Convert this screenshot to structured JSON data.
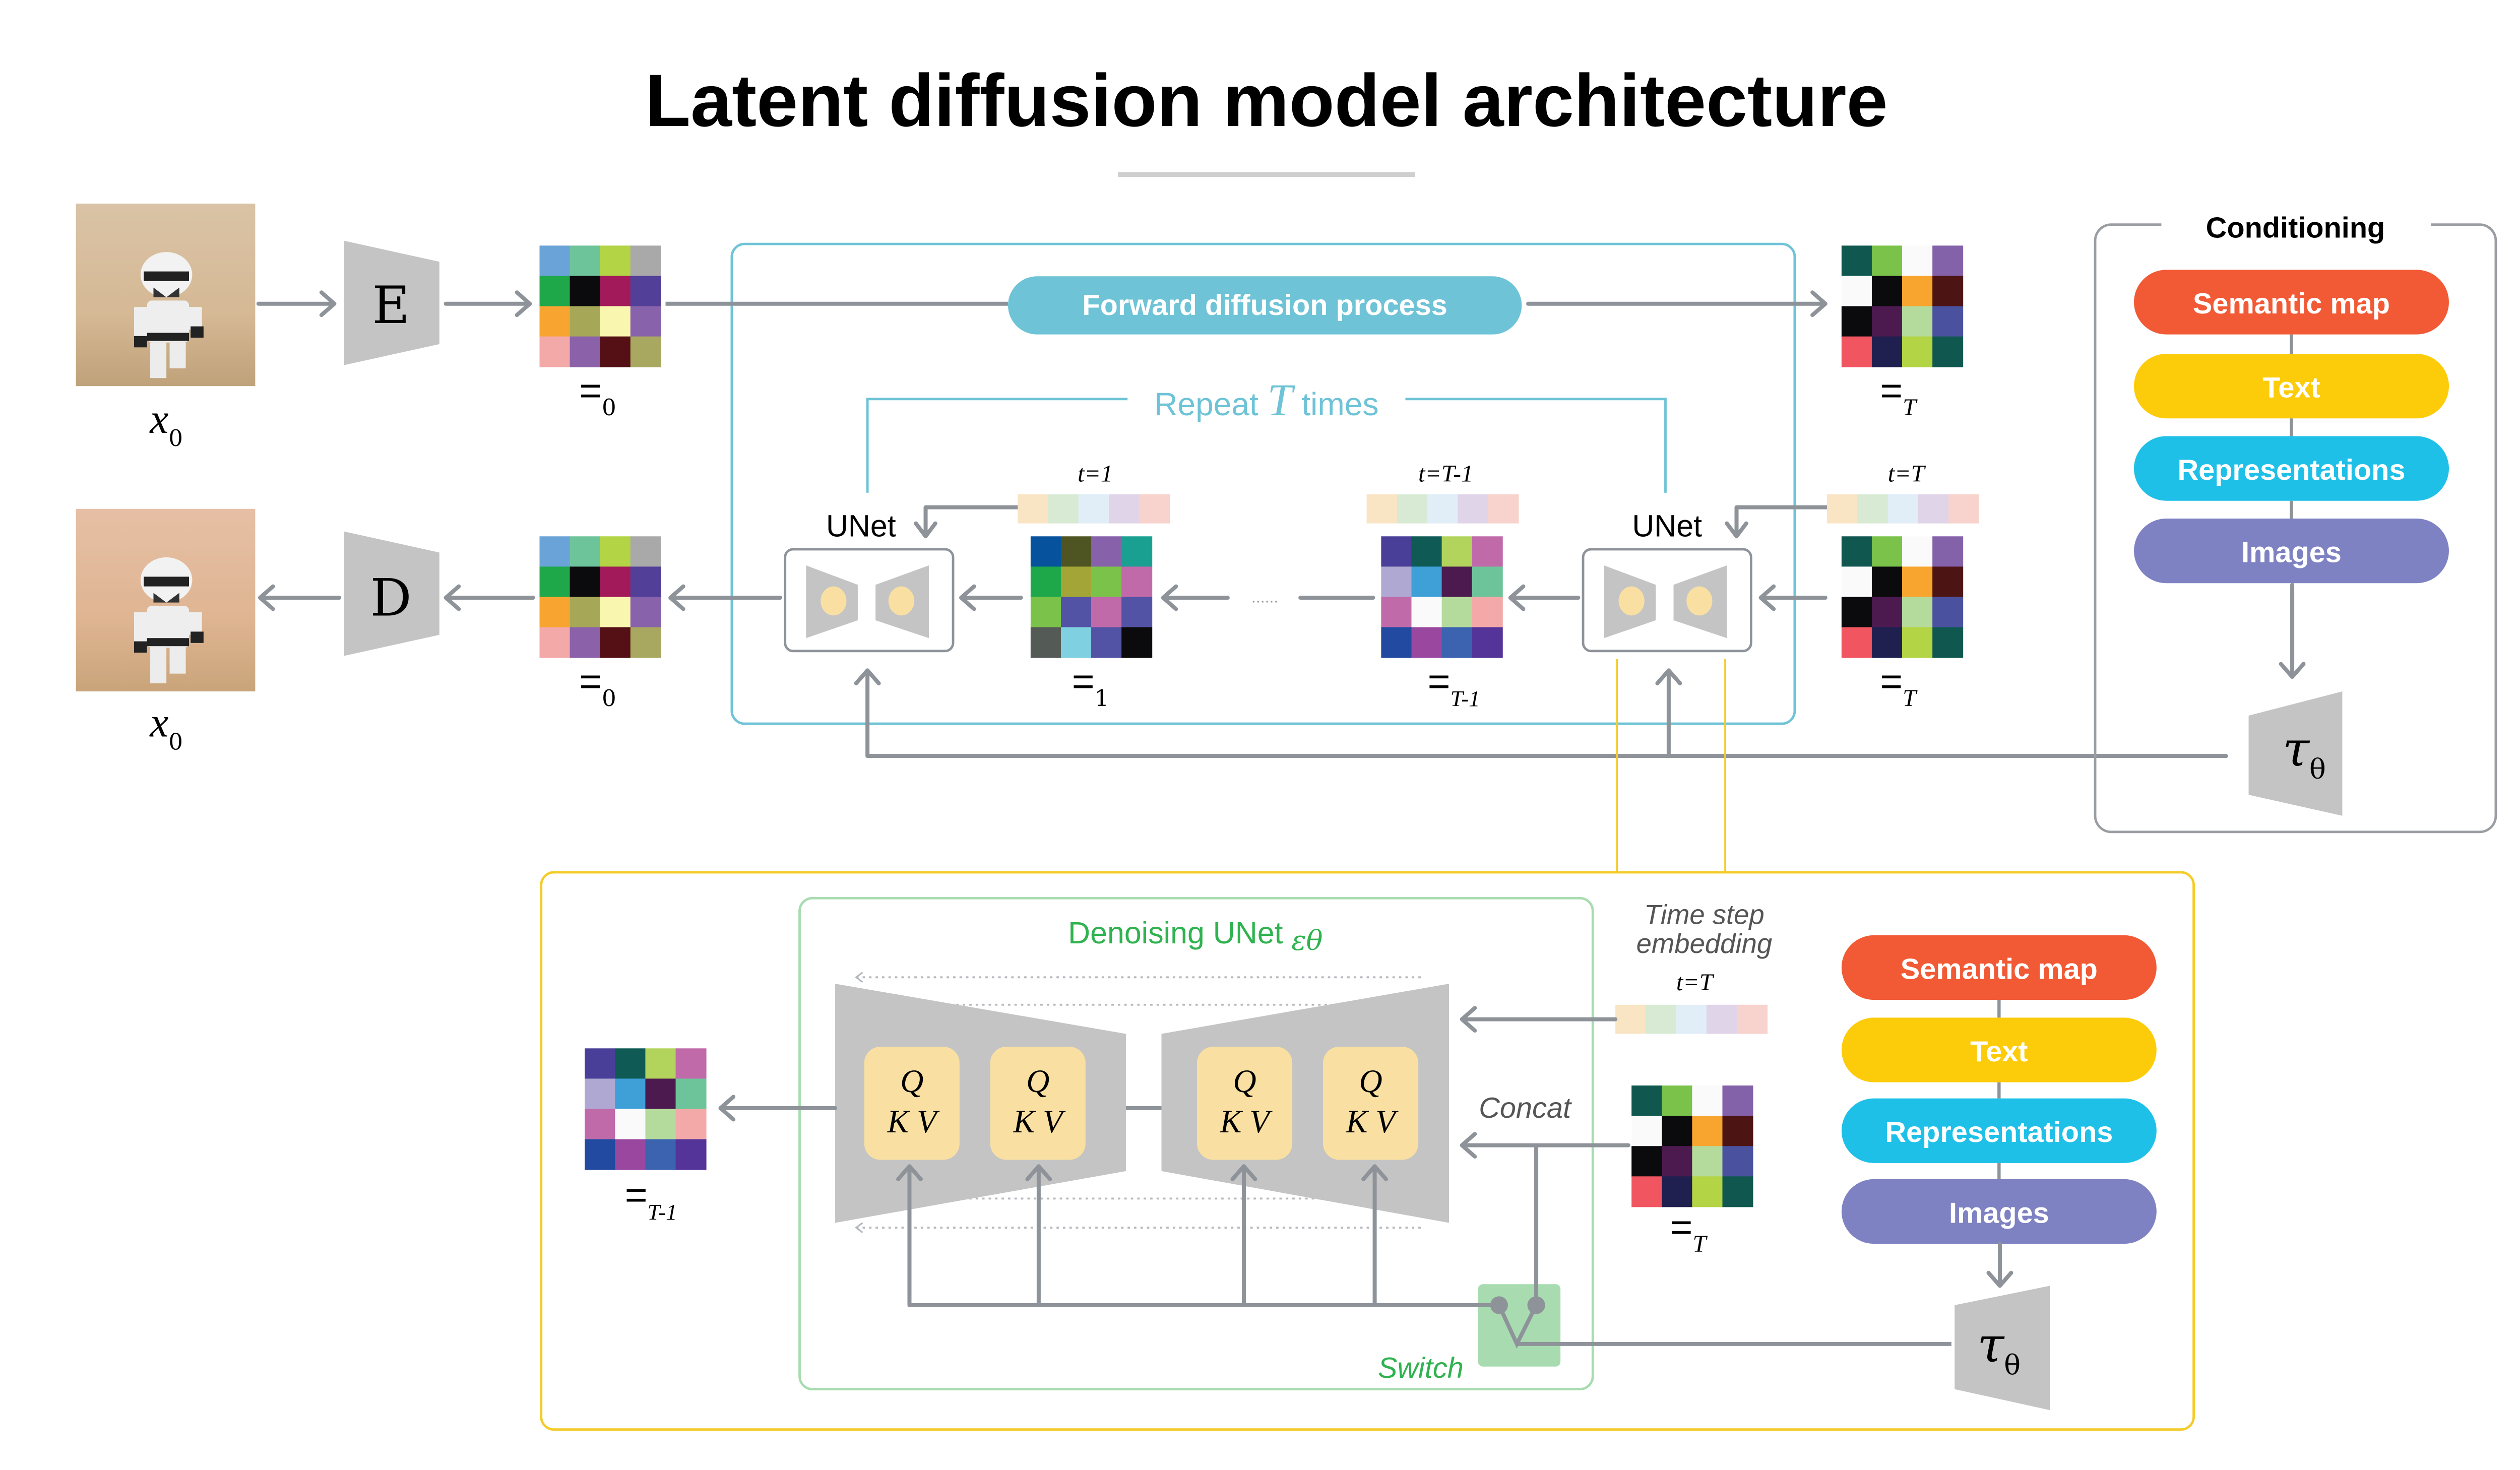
{
  "title": "Latent diffusion model architecture",
  "colors": {
    "teal": "#6ec3d6",
    "yellow_frame": "#f4cc2a",
    "green": "#2fb24f",
    "green_fill": "#a8dcb0",
    "block_gray": "#c4c4c4",
    "qkv_fill": "#f9e0a2",
    "arrow_gray": "#8e9399"
  },
  "encoder": {
    "label": "E"
  },
  "decoder": {
    "label": "D"
  },
  "input_image": {
    "var": "x",
    "sub": "0"
  },
  "output_image": {
    "var": "x",
    "sub": "0"
  },
  "forward_process": {
    "label": "Forward diffusion process"
  },
  "repeat": {
    "prefix": "Repeat ",
    "var": "T",
    "suffix": " times"
  },
  "unet_labels": {
    "left": "UNet",
    "right": "UNet"
  },
  "ellipsis": "......",
  "latents": {
    "z0": {
      "label": "=",
      "sub": "0",
      "rows": [
        [
          "#6aa3d8",
          "#6ec49a",
          "#b3d444",
          "#a9a9a9"
        ],
        [
          "#1ea84a",
          "#0b0b0d",
          "#a21a5a",
          "#523f98"
        ],
        [
          "#f7a530",
          "#a6a858",
          "#f9f6b0",
          "#8862aa"
        ],
        [
          "#f4a9a9",
          "#8b62aa",
          "#541014",
          "#a9a860"
        ]
      ]
    },
    "zT": {
      "label": "=",
      "sub": "T",
      "rows": [
        [
          "#10584f",
          "#7bc24a",
          "#fafafa",
          "#8462aa"
        ],
        [
          "#fafafa",
          "#0b0b0d",
          "#f7a52e",
          "#4d1414"
        ],
        [
          "#0b0b0d",
          "#4d1a50",
          "#b5db9c",
          "#4a52a0"
        ],
        [
          "#f05560",
          "#1f1f50",
          "#b3d444",
          "#10584f"
        ]
      ]
    },
    "z1": {
      "label": "=",
      "sub": "1",
      "rows": [
        [
          "#06529c",
          "#4e5522",
          "#8762aa",
          "#1aa090"
        ],
        [
          "#1ea84a",
          "#a3a637",
          "#7bc24a",
          "#c06aaa"
        ],
        [
          "#7bc24a",
          "#5353a5",
          "#c06aaa",
          "#5353a5"
        ],
        [
          "#545a55",
          "#7fd0e0",
          "#5353a5",
          "#0b0b0d"
        ]
      ]
    },
    "zTm1": {
      "label": "=",
      "sub": "T-1",
      "rows": [
        [
          "#4a3f98",
          "#105a55",
          "#b3d45c",
          "#c06aaa"
        ],
        [
          "#aea8d2",
          "#3fa0d8",
          "#4d1a50",
          "#6ec49a"
        ],
        [
          "#c06aaa",
          "#fafafa",
          "#b5db9c",
          "#f4a9a9"
        ],
        [
          "#224aa0",
          "#9a47a0",
          "#3b63b0",
          "#543498"
        ]
      ]
    }
  },
  "embedding_strip": [
    "#f9e4c4",
    "#d8ead4",
    "#e1eef8",
    "#e0d4e8",
    "#f8d2cc"
  ],
  "timesteps": {
    "t1": "t=1",
    "tTm1": "t=T-1",
    "tT": "t=T"
  },
  "conditioning": {
    "title": "Conditioning",
    "items": [
      {
        "label": "Semantic map",
        "color": "#f15a35"
      },
      {
        "label": "Text",
        "color": "#fccc0a"
      },
      {
        "label": "Representations",
        "color": "#1fc0e8"
      },
      {
        "label": "Images",
        "color": "#7e82c2"
      }
    ],
    "tau": {
      "var": "τ",
      "sub": "θ"
    }
  },
  "denoising": {
    "title": "Denoising UNet ",
    "title_symbol": "εθ",
    "qkv": [
      {
        "q": "Q",
        "kv": "K V"
      },
      {
        "q": "Q",
        "kv": "K V"
      },
      {
        "q": "Q",
        "kv": "K V"
      },
      {
        "q": "Q",
        "kv": "K V"
      }
    ],
    "time_step_line1": "Time step",
    "time_step_line2": "embedding",
    "t_label": "t=T",
    "concat": "Concat",
    "switch": "Switch"
  }
}
